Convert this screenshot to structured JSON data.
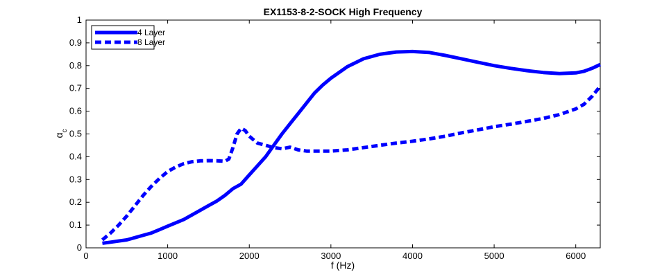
{
  "chart_data": {
    "type": "line",
    "title": "EX1153-8-2-SOCK High Frequency",
    "xlabel": "f (Hz)",
    "ylabel": "α",
    "ylabel_subscript": "c",
    "xlim": [
      0,
      6300
    ],
    "ylim": [
      0,
      1
    ],
    "xticks": [
      0,
      1000,
      2000,
      3000,
      4000,
      5000,
      6000
    ],
    "yticks": [
      0,
      0.1,
      0.2,
      0.3,
      0.4,
      0.5,
      0.6,
      0.7,
      0.8,
      0.9,
      1
    ],
    "xtick_labels": [
      "0",
      "1000",
      "2000",
      "3000",
      "4000",
      "5000",
      "6000"
    ],
    "ytick_labels": [
      "0",
      "0.1",
      "0.2",
      "0.3",
      "0.4",
      "0.5",
      "0.6",
      "0.7",
      "0.8",
      "0.9",
      "1"
    ],
    "grid": false,
    "legend_position": "top-left",
    "series": [
      {
        "name": "4 Layer",
        "style": "solid",
        "color": "#0000ff",
        "x": [
          200,
          300,
          400,
          500,
          600,
          700,
          800,
          900,
          1000,
          1100,
          1200,
          1300,
          1400,
          1500,
          1600,
          1700,
          1800,
          1900,
          2000,
          2100,
          2200,
          2300,
          2400,
          2500,
          2600,
          2700,
          2800,
          2900,
          3000,
          3200,
          3400,
          3600,
          3800,
          4000,
          4200,
          4400,
          4600,
          4800,
          5000,
          5200,
          5400,
          5600,
          5800,
          6000,
          6100,
          6200,
          6300
        ],
        "y": [
          0.02,
          0.025,
          0.03,
          0.035,
          0.045,
          0.055,
          0.065,
          0.08,
          0.095,
          0.11,
          0.125,
          0.145,
          0.165,
          0.185,
          0.205,
          0.23,
          0.26,
          0.28,
          0.32,
          0.36,
          0.4,
          0.45,
          0.5,
          0.545,
          0.59,
          0.635,
          0.68,
          0.715,
          0.745,
          0.795,
          0.83,
          0.85,
          0.86,
          0.862,
          0.858,
          0.845,
          0.83,
          0.815,
          0.8,
          0.788,
          0.778,
          0.77,
          0.765,
          0.768,
          0.775,
          0.788,
          0.805
        ]
      },
      {
        "name": "8 Layer",
        "style": "dashed",
        "color": "#0000ff",
        "x": [
          200,
          300,
          400,
          500,
          600,
          700,
          800,
          900,
          1000,
          1100,
          1200,
          1300,
          1400,
          1500,
          1600,
          1700,
          1750,
          1800,
          1850,
          1900,
          1950,
          2000,
          2100,
          2200,
          2300,
          2400,
          2500,
          2600,
          2700,
          2800,
          3000,
          3200,
          3400,
          3600,
          3800,
          4000,
          4200,
          4400,
          4600,
          4800,
          5000,
          5200,
          5400,
          5600,
          5800,
          6000,
          6100,
          6200,
          6300
        ],
        "y": [
          0.035,
          0.065,
          0.1,
          0.14,
          0.185,
          0.23,
          0.27,
          0.305,
          0.335,
          0.355,
          0.37,
          0.378,
          0.382,
          0.383,
          0.382,
          0.38,
          0.39,
          0.44,
          0.5,
          0.525,
          0.515,
          0.49,
          0.46,
          0.45,
          0.44,
          0.435,
          0.442,
          0.43,
          0.425,
          0.425,
          0.425,
          0.43,
          0.44,
          0.45,
          0.46,
          0.468,
          0.478,
          0.49,
          0.505,
          0.518,
          0.532,
          0.543,
          0.555,
          0.568,
          0.585,
          0.61,
          0.63,
          0.665,
          0.71
        ]
      }
    ]
  }
}
